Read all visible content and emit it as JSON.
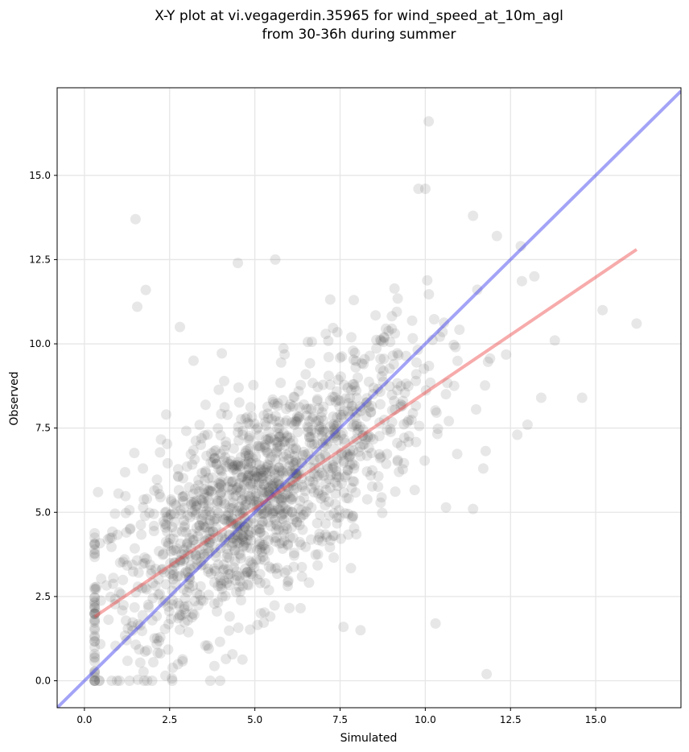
{
  "chart_data": {
    "type": "scatter",
    "title": "X-Y plot at vi.vegagerdin.35965 for wind_speed_at_10m_agl",
    "subtitle": "from 30-36h during summer",
    "xlabel": "Simulated",
    "ylabel": "Observed",
    "xlim": [
      -0.8,
      17.5
    ],
    "ylim": [
      -0.8,
      17.6
    ],
    "xticks": [
      0.0,
      2.5,
      5.0,
      7.5,
      10.0,
      12.5,
      15.0
    ],
    "yticks": [
      0.0,
      2.5,
      5.0,
      7.5,
      10.0,
      12.5,
      15.0
    ],
    "xtick_labels": [
      "0.0",
      "2.5",
      "5.0",
      "7.5",
      "10.0",
      "12.5",
      "15.0"
    ],
    "ytick_labels": [
      "0.0",
      "2.5",
      "5.0",
      "7.5",
      "10.0",
      "12.5",
      "15.0"
    ],
    "grid": true,
    "marker_color": "#444444",
    "marker_alpha": 0.13,
    "lines": [
      {
        "kind": "identity",
        "color": "#3333ee",
        "x": [
          -0.8,
          17.5
        ],
        "y": [
          -0.8,
          17.5
        ]
      },
      {
        "kind": "regression",
        "color": "#ee4444",
        "x": [
          0.3,
          16.2
        ],
        "y": [
          1.9,
          12.8
        ]
      }
    ],
    "highlighted_points": [
      {
        "x": 10.1,
        "y": 16.6
      },
      {
        "x": 1.5,
        "y": 13.7
      },
      {
        "x": 1.8,
        "y": 11.6
      },
      {
        "x": 1.55,
        "y": 11.1
      },
      {
        "x": 2.8,
        "y": 10.5
      },
      {
        "x": 4.5,
        "y": 12.4
      },
      {
        "x": 5.6,
        "y": 12.5
      },
      {
        "x": 9.8,
        "y": 14.6
      },
      {
        "x": 10.0,
        "y": 14.6
      },
      {
        "x": 11.4,
        "y": 13.8
      },
      {
        "x": 12.1,
        "y": 13.2
      },
      {
        "x": 12.8,
        "y": 12.9
      },
      {
        "x": 13.2,
        "y": 12.0
      },
      {
        "x": 15.2,
        "y": 11.0
      },
      {
        "x": 16.2,
        "y": 10.6
      },
      {
        "x": 13.8,
        "y": 10.1
      },
      {
        "x": 14.6,
        "y": 8.4
      },
      {
        "x": 11.8,
        "y": 0.2
      },
      {
        "x": 10.3,
        "y": 1.7
      },
      {
        "x": 8.1,
        "y": 1.5
      },
      {
        "x": 0.8,
        "y": 0.0
      },
      {
        "x": 0.4,
        "y": 5.6
      },
      {
        "x": 11.4,
        "y": 5.1
      },
      {
        "x": 11.7,
        "y": 6.3
      },
      {
        "x": 3.2,
        "y": 9.5
      },
      {
        "x": 2.4,
        "y": 7.9
      },
      {
        "x": 12.7,
        "y": 7.3
      },
      {
        "x": 13.0,
        "y": 7.6
      },
      {
        "x": 13.4,
        "y": 8.4
      },
      {
        "x": 7.6,
        "y": 1.6
      }
    ],
    "cloud": {
      "n": 1450,
      "x_mean": 5.1,
      "x_sd": 2.45,
      "x_min": 0.3,
      "x_max": 13.0,
      "y_intercept": 1.9,
      "y_slope": 0.68,
      "y_noise_sd": 1.55,
      "y_min": 0.0,
      "y_max": 15.0
    }
  }
}
